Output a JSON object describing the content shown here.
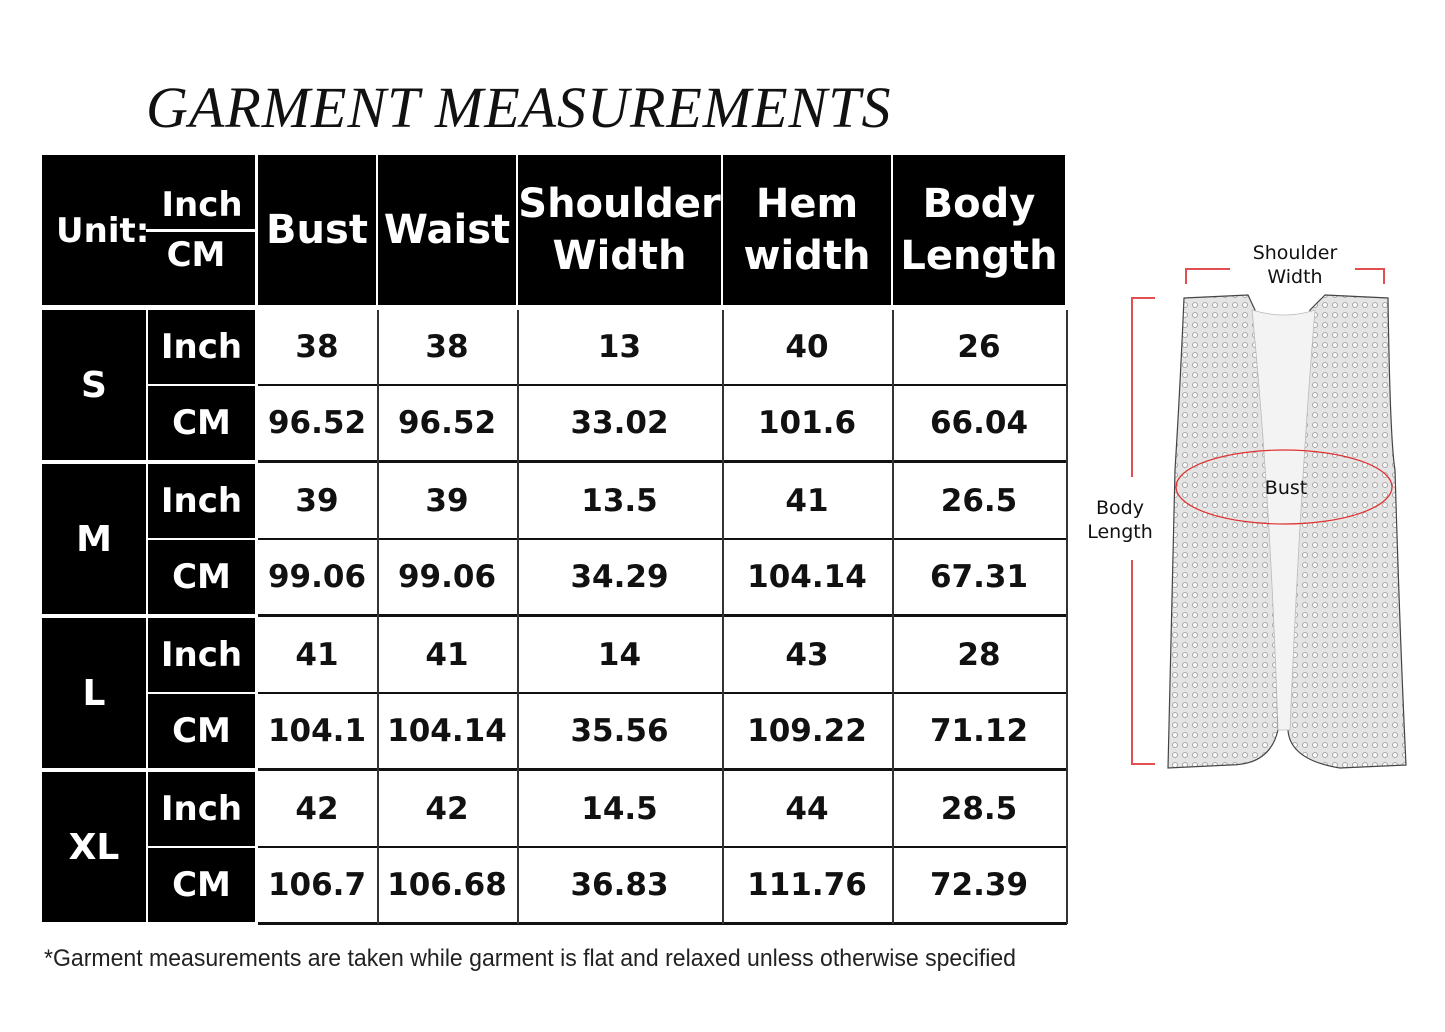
{
  "title": "GARMENT MEASUREMENTS",
  "unit_header": {
    "label": "Unit:",
    "top": "Inch",
    "bottom": "CM"
  },
  "columns": [
    "Bust",
    "Waist",
    "Shoulder Width",
    "Hem width",
    "Body Length"
  ],
  "rows": [
    {
      "size": "S",
      "inch_label": "Inch",
      "cm_label": "CM",
      "inch": [
        "38",
        "38",
        "13",
        "40",
        "26"
      ],
      "cm": [
        "96.52",
        "96.52",
        "33.02",
        "101.6",
        "66.04"
      ]
    },
    {
      "size": "M",
      "inch_label": "Inch",
      "cm_label": "CM",
      "inch": [
        "39",
        "39",
        "13.5",
        "41",
        "26.5"
      ],
      "cm": [
        "99.06",
        "99.06",
        "34.29",
        "104.14",
        "67.31"
      ]
    },
    {
      "size": "L",
      "inch_label": "Inch",
      "cm_label": "CM",
      "inch": [
        "41",
        "41",
        "14",
        "43",
        "28"
      ],
      "cm": [
        "104.1",
        "104.14",
        "35.56",
        "109.22",
        "71.12"
      ]
    },
    {
      "size": "XL",
      "inch_label": "Inch",
      "cm_label": "CM",
      "inch": [
        "42",
        "42",
        "14.5",
        "44",
        "28.5"
      ],
      "cm": [
        "106.7",
        "106.68",
        "36.83",
        "111.76",
        "72.39"
      ]
    }
  ],
  "footnote": "*Garment measurements are taken while garment is flat and relaxed unless otherwise specified",
  "diagram": {
    "shoulder": "Shoulder Width",
    "bust": "Bust",
    "length": "Body Length",
    "accent": "#e05050"
  }
}
